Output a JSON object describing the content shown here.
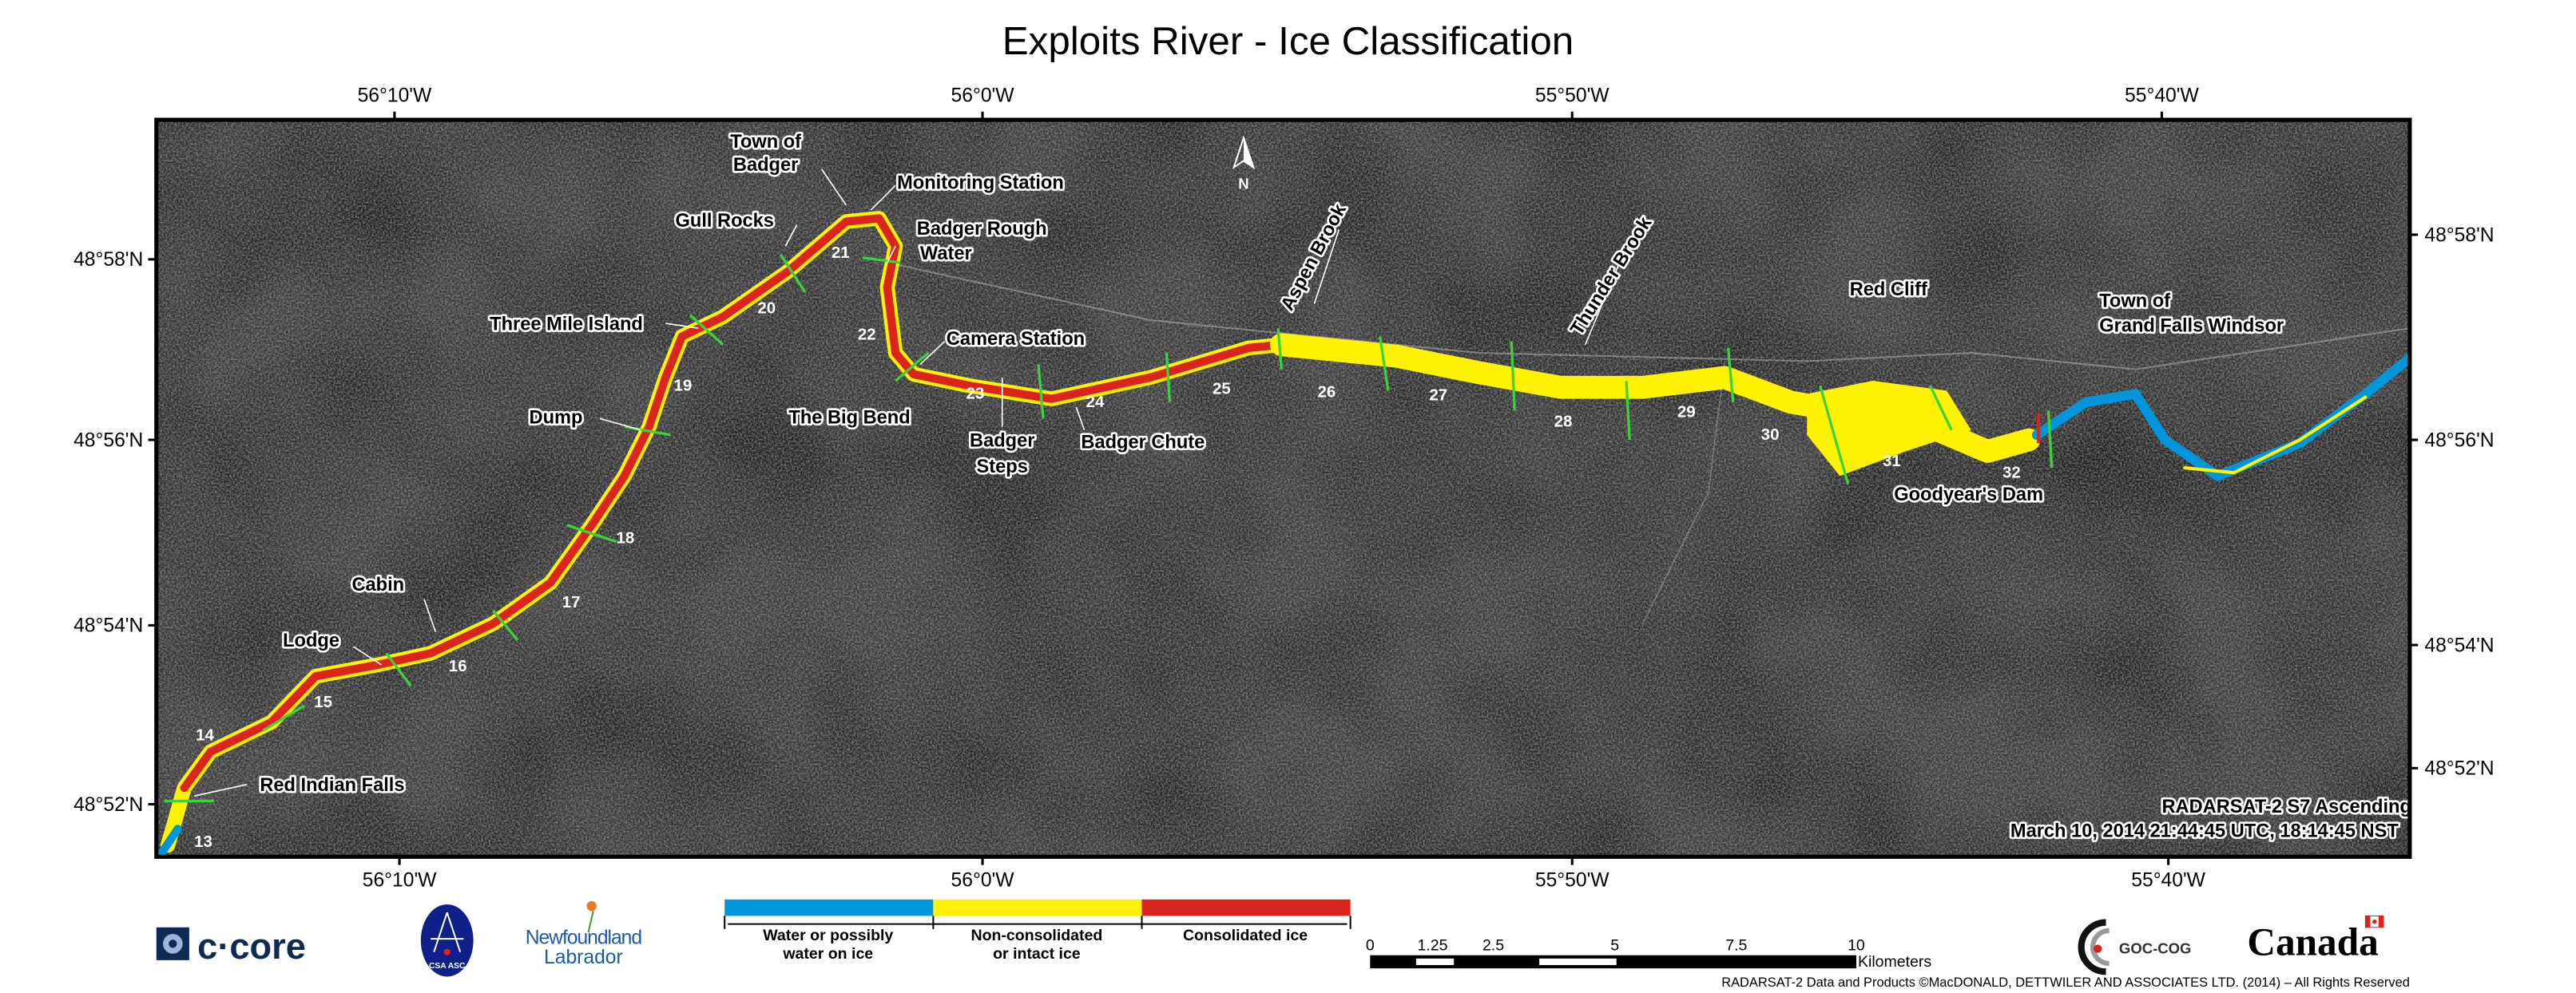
{
  "title": "Exploits River - Ice Classification",
  "longitude_labels": [
    "56°10'W",
    "56°0'W",
    "55°50'W",
    "55°40'W"
  ],
  "latitude_labels_left": [
    "48°58'N",
    "48°56'N",
    "48°54'N",
    "48°52'N"
  ],
  "latitude_labels_right": [
    "48°58'N",
    "48°56'N",
    "48°54'N",
    "48°52'N"
  ],
  "north_arrow": "N",
  "place_labels": {
    "town_of_badger": [
      "Town of",
      "Badger"
    ],
    "monitoring_station": "Monitoring Station",
    "gull_rocks": "Gull Rocks",
    "badger_rough_water": [
      "Badger Rough",
      "Water"
    ],
    "three_mile_island": "Three Mile Island",
    "camera_station": "Camera Station",
    "the_big_bend": "The Big Bend",
    "badger_steps": [
      "Badger",
      "Steps"
    ],
    "badger_chute": "Badger Chute",
    "dump": "Dump",
    "cabin": "Cabin",
    "lodge": "Lodge",
    "red_indian_falls": "Red Indian Falls",
    "aspen_brook": "Aspen Brook",
    "thunder_brook": "Thunder Brook",
    "red_cliff": "Red Cliff",
    "grand_falls_windsor": [
      "Town of",
      "Grand Falls Windsor"
    ],
    "goodyears_dam": "Goodyear's Dam"
  },
  "section_numbers": [
    "13",
    "14",
    "15",
    "16",
    "17",
    "18",
    "19",
    "20",
    "21",
    "22",
    "23",
    "24",
    "25",
    "26",
    "27",
    "28",
    "29",
    "30",
    "31",
    "32"
  ],
  "acquisition": {
    "line1": "RADARSAT-2 S7  Ascending",
    "line2": "March 10, 2014 21:44:45 UTC, 18:14:45 NST"
  },
  "legend": [
    {
      "label": [
        "Water or possibly",
        "water on ice"
      ],
      "color": "#0096dc"
    },
    {
      "label": [
        "Non-consolidated",
        "or intact ice"
      ],
      "color": "#fff200"
    },
    {
      "label": [
        "Consolidated ice"
      ],
      "color": "#dc231e"
    }
  ],
  "scale_bar": {
    "ticks": [
      "0",
      "1.25",
      "2.5",
      "5",
      "7.5",
      "10"
    ],
    "units": "Kilometers"
  },
  "logos": [
    "C-CORE",
    "CSA ASC",
    "Newfoundland Labrador",
    "GOC-COG",
    "Canada"
  ],
  "copyright": "RADARSAT-2 Data and Products ©MacDONALD, DETTWILER AND ASSOCIATES LTD. (2014) – All Rights Reserved",
  "colors": {
    "water": "#0096dc",
    "non_consolidated": "#fff200",
    "consolidated": "#dc231e",
    "section_line": "#3cd23c"
  }
}
